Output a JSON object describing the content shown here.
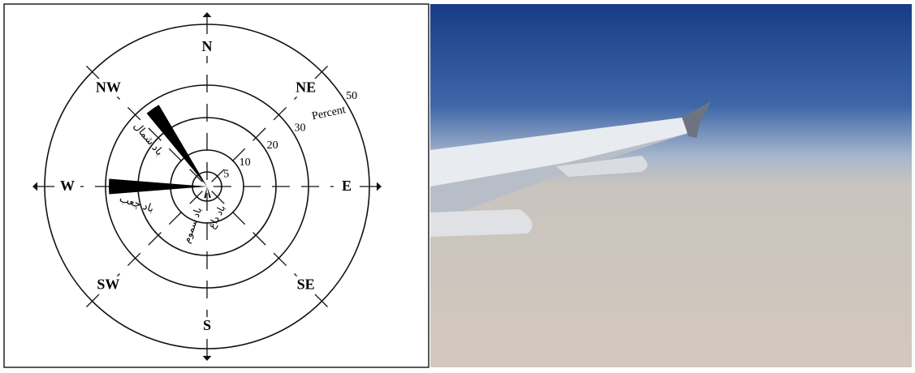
{
  "chart_data": {
    "type": "windrose",
    "axis_label": "Percent",
    "rings": [
      5,
      10,
      20,
      30,
      50
    ],
    "directions": [
      "N",
      "NE",
      "E",
      "SE",
      "S",
      "SW",
      "W",
      "NW"
    ],
    "wedges": [
      {
        "name": "باد شمال",
        "direction": 325,
        "values": 28
      },
      {
        "name": "باد چعب",
        "direction": 270,
        "values": 29
      },
      {
        "name": "باد سموم",
        "direction": 190,
        "values": 4
      },
      {
        "name": "باد داغ",
        "direction": 165,
        "values": 4
      }
    ],
    "color": "#000000"
  }
}
